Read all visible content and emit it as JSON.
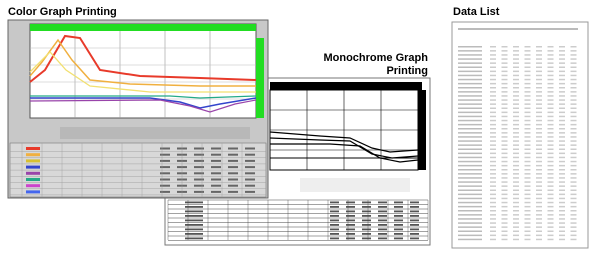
{
  "color_panel": {
    "title": "Color Graph Printing"
  },
  "mono_panel": {
    "title": "Monochrome Graph Printing"
  },
  "data_list": {
    "title": "Data List"
  }
}
